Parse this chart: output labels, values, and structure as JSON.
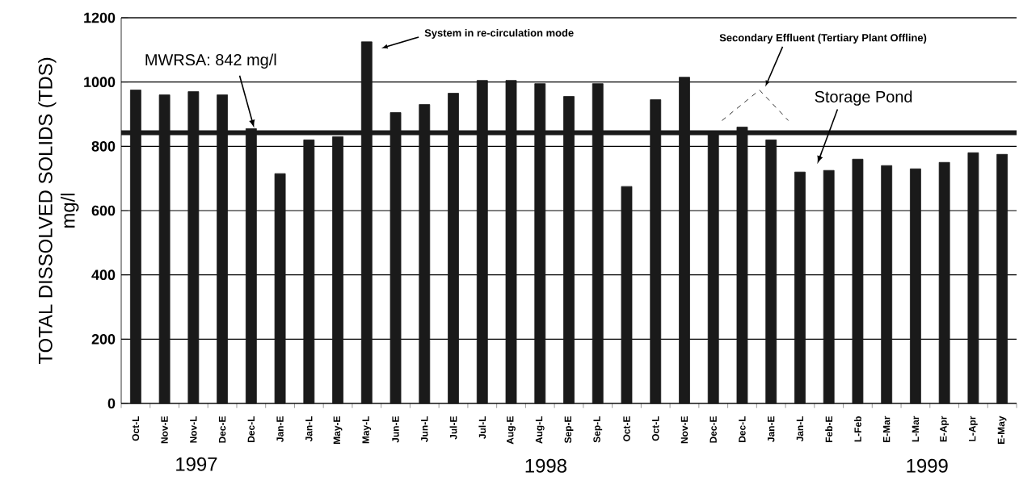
{
  "chart_data": {
    "type": "bar",
    "ylabel": "TOTAL DISSOLVED SOLIDS (TDS) mg/l",
    "categories": [
      "Oct-L",
      "Nov-E",
      "Nov-L",
      "Dec-E",
      "Dec-L",
      "Jan-E",
      "Jan-L",
      "May-E",
      "May-L",
      "Jun-E",
      "Jun-L",
      "Jul-E",
      "Jul-L",
      "Aug-E",
      "Aug-L",
      "Sep-E",
      "Sep-L",
      "Oct-E",
      "Oct-L",
      "Nov-E",
      "Dec-E",
      "Dec-L",
      "Jan-E",
      "Jan-L",
      "Feb-E",
      "L-Feb",
      "E-Mar",
      "L-Mar",
      "E-Apr",
      "L-Apr",
      "E-May"
    ],
    "values": [
      975,
      960,
      970,
      960,
      855,
      715,
      820,
      830,
      1125,
      905,
      930,
      965,
      1005,
      1005,
      995,
      955,
      995,
      675,
      945,
      1015,
      840,
      860,
      820,
      720,
      725,
      760,
      740,
      730,
      750,
      780,
      775
    ],
    "color": "#1a1a1a",
    "ylim": [
      0,
      1200
    ],
    "yticks": [
      0,
      200,
      400,
      600,
      800,
      1000,
      1200
    ],
    "grid": "y",
    "ref_lines": [
      {
        "axis": "y",
        "value": 842,
        "label": "MWRSA: 842 mg/l",
        "color": "#1a1a1a"
      }
    ],
    "annotations": [
      "System in re-circulation mode",
      "Secondary Effluent (Tertiary Plant Offline)",
      "Storage Pond",
      "1997",
      "1998",
      "1999"
    ]
  }
}
